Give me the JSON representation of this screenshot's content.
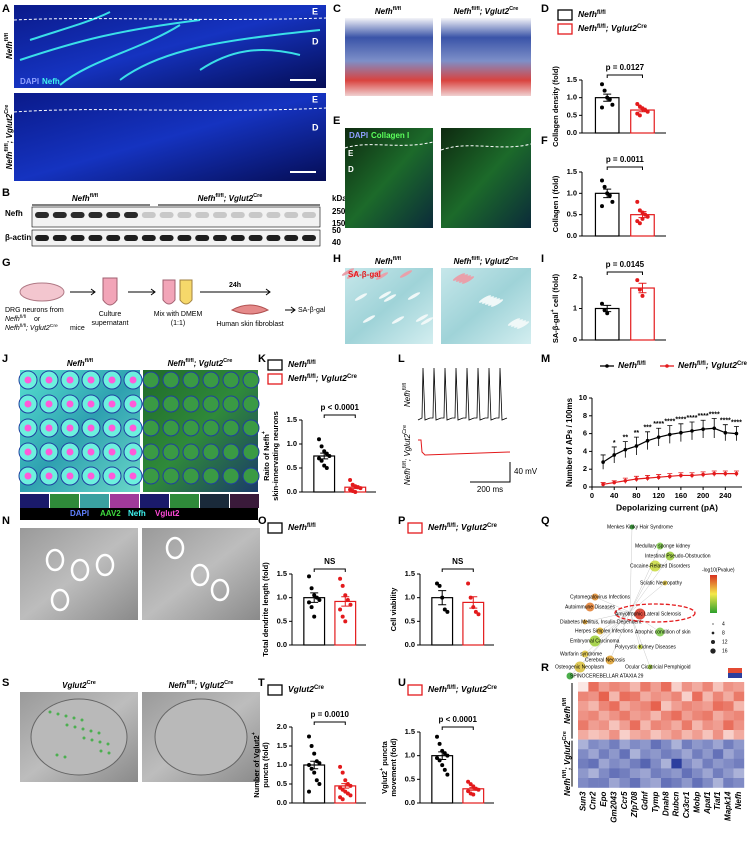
{
  "panel_labels": [
    "A",
    "B",
    "C",
    "D",
    "E",
    "F",
    "G",
    "H",
    "I",
    "J",
    "K",
    "L",
    "M",
    "N",
    "O",
    "P",
    "Q",
    "R",
    "S",
    "T",
    "U"
  ],
  "genotypes": {
    "wt": [
      "Nefh",
      "fl/fl"
    ],
    "ko": [
      "Nefh",
      "fl/fl",
      "; Vglut2",
      "Cre"
    ],
    "cre": [
      "Vglut2",
      "Cre"
    ]
  },
  "channels": {
    "A": [
      "DAPI",
      "Nefh"
    ],
    "E": [
      "DAPI",
      "Collagen I"
    ],
    "J": [
      "DAPI",
      "AAV2",
      "Nefh",
      "Vglut2"
    ],
    "H": [
      "SA-β-gal"
    ]
  },
  "layer_labels": [
    "E",
    "D"
  ],
  "blot": {
    "rows": [
      "Nefh",
      "β-actin"
    ],
    "unit": "kDa",
    "markers": [
      250,
      150,
      50,
      40
    ]
  },
  "schematic": {
    "step1": "DRG neurons from",
    "or": "or",
    "mice": "mice",
    "step2": [
      "Culture",
      "supernatant"
    ],
    "step3": [
      "Mix with DMEM",
      "(1:1)"
    ],
    "time": "24h",
    "step4": "Human skin fibroblast",
    "readout": "SA-β-gal"
  },
  "traces": {
    "voltage": "40 mV",
    "time": "200 ms"
  },
  "network": {
    "nodes": [
      "Menkes Kinky Hair Syndrome",
      "Medullary sponge kidney",
      "Intestinal Pseudo-Obstruction",
      "Cocaine-Related Disorders",
      "Sciatic Neuropathy",
      "Cytomegalovirus Infections",
      "Autoimmune Diseases",
      "Amyotrophic Lateral Sclerosis",
      "Diabetes Mellitus, Insulin-Dependent",
      "Herpes Simplex Infections",
      "Atrophic condition of skin",
      "Embryonal Carcinoma",
      "Polycystic Kidney Diseases",
      "Warfarin syndrome",
      "Cerebral Necrosis",
      "Osteogenic Neoplasm",
      "Ocular Cicatricial Pemphigoid",
      "SPINOCEREBELLAR ATAXIA 29"
    ],
    "legend_title": "-log10(Pvalue)",
    "sizes": [
      4,
      8,
      12,
      16
    ]
  },
  "chart_data": [
    {
      "type": "bar",
      "ylabel": [
        [
          "Collagen density (fold)"
        ]
      ],
      "ylim": [
        0,
        1.5
      ],
      "yticks": [
        {
          "value": 0,
          "label": "0.0"
        },
        {
          "value": 0.5,
          "label": "0.5"
        },
        {
          "value": 1,
          "label": "1.0"
        },
        {
          "value": 1.5,
          "label": "1.5"
        }
      ],
      "stat": "p = 0.0127",
      "series": [
        {
          "name": [
            "Nefh",
            "fl/fl"
          ],
          "color": "#000000",
          "values": [
            1.0
          ],
          "errors": [
            0.1
          ],
          "points": [
            1.38,
            1.2,
            1.0,
            0.95,
            0.8,
            0.72
          ]
        },
        {
          "name": [
            "Nefh",
            "fl/fl",
            "; Vglut2",
            "Cre"
          ],
          "color": "#e31a1c",
          "values": [
            0.65
          ],
          "errors": [
            0.05
          ],
          "points": [
            0.82,
            0.75,
            0.7,
            0.65,
            0.6,
            0.55,
            0.5,
            0.68
          ]
        }
      ]
    },
    {
      "type": "bar",
      "ylabel": [
        [
          "Collagen I (fold)"
        ]
      ],
      "ylim": [
        0,
        1.5
      ],
      "yticks": [
        {
          "value": 0,
          "label": "0.0"
        },
        {
          "value": 0.5,
          "label": "0.5"
        },
        {
          "value": 1,
          "label": "1.0"
        },
        {
          "value": 1.5,
          "label": "1.5"
        }
      ],
      "stat": "p = 0.0011",
      "series": [
        {
          "name": [
            "Nefh",
            "fl/fl"
          ],
          "color": "#000000",
          "values": [
            1.0
          ],
          "errors": [
            0.1
          ],
          "points": [
            1.3,
            1.15,
            1.0,
            0.95,
            0.8,
            0.7
          ]
        },
        {
          "name": [
            "Nefh",
            "fl/fl",
            "; Vglut2",
            "Cre"
          ],
          "color": "#e31a1c",
          "values": [
            0.5
          ],
          "errors": [
            0.07
          ],
          "points": [
            0.8,
            0.6,
            0.55,
            0.5,
            0.45,
            0.35,
            0.3,
            0.4
          ]
        }
      ]
    },
    {
      "type": "bar",
      "ylabel": [
        [
          "SA-β-gal",
          "+",
          " cell (fold)"
        ]
      ],
      "ylim": [
        0,
        2
      ],
      "yticks": [
        0,
        1,
        2
      ],
      "stat": "p = 0.0145",
      "series": [
        {
          "name": [
            "Nefh",
            "fl/fl"
          ],
          "color": "#000000",
          "values": [
            1.0
          ],
          "errors": [
            0.1
          ],
          "points": [
            1.15,
            0.95,
            0.85
          ]
        },
        {
          "name": [
            "Nefh",
            "fl/fl",
            "; Vglut2",
            "Cre"
          ],
          "color": "#e31a1c",
          "values": [
            1.65
          ],
          "errors": [
            0.15
          ],
          "points": [
            1.9,
            1.6,
            1.4
          ]
        }
      ]
    },
    {
      "type": "bar",
      "ylabel": [
        [
          "Raito of Nefh",
          "+"
        ],
        [
          "skin-innervating neurons"
        ]
      ],
      "ylim": [
        0,
        1.5
      ],
      "yticks": [
        {
          "value": 0,
          "label": "0.0"
        },
        {
          "value": 0.5,
          "label": "0.5"
        },
        {
          "value": 1,
          "label": "1.0"
        },
        {
          "value": 1.5,
          "label": "1.5"
        }
      ],
      "stat": "p < 0.0001",
      "series": [
        {
          "name": [
            "Nefh",
            "fl/fl"
          ],
          "color": "#000000",
          "values": [
            0.75
          ],
          "errors": [
            0.06
          ],
          "points": [
            1.1,
            0.95,
            0.85,
            0.8,
            0.75,
            0.7,
            0.65,
            0.55,
            0.5
          ]
        },
        {
          "name": [
            "Nefh",
            "fl/fl",
            "; Vglut2",
            "Cre"
          ],
          "color": "#e31a1c",
          "values": [
            0.1
          ],
          "errors": [
            0.03
          ],
          "points": [
            0.25,
            0.15,
            0.12,
            0.1,
            0.08,
            0.05,
            0.02,
            0.0
          ]
        }
      ]
    },
    {
      "type": "bar",
      "ylabel": [
        [
          "Total dendrite length (fold)"
        ]
      ],
      "ylim": [
        0,
        1.5
      ],
      "yticks": [
        {
          "value": 0,
          "label": "0.0"
        },
        {
          "value": 0.5,
          "label": "0.5"
        },
        {
          "value": 1,
          "label": "1.0"
        },
        {
          "value": 1.5,
          "label": "1.5"
        }
      ],
      "stat": "NS",
      "series": [
        {
          "name": [
            "Nefh",
            "fl/fl"
          ],
          "color": "#000000",
          "values": [
            1.0
          ],
          "errors": [
            0.1
          ],
          "points": [
            1.45,
            1.2,
            1.05,
            1.0,
            0.95,
            0.9,
            0.8,
            0.6
          ]
        },
        {
          "name": [
            "Nefh",
            "fl/fl",
            "; Vglut2",
            "Cre"
          ],
          "color": "#e31a1c",
          "values": [
            0.92
          ],
          "errors": [
            0.1
          ],
          "points": [
            1.4,
            1.25,
            1.05,
            0.95,
            0.85,
            0.75,
            0.6,
            0.5
          ]
        }
      ]
    },
    {
      "type": "bar",
      "ylabel": [
        [
          "Cell viability"
        ]
      ],
      "ylim": [
        0,
        1.5
      ],
      "yticks": [
        {
          "value": 0,
          "label": "0.0"
        },
        {
          "value": 0.5,
          "label": "0.5"
        },
        {
          "value": 1,
          "label": "1.0"
        },
        {
          "value": 1.5,
          "label": "1.5"
        }
      ],
      "stat": "NS",
      "series": [
        {
          "name": [
            "Nefh",
            "fl/fl"
          ],
          "color": "#000000",
          "values": [
            1.0
          ],
          "errors": [
            0.15
          ],
          "points": [
            1.3,
            1.25,
            1.0,
            0.75,
            0.7
          ]
        },
        {
          "name": [
            "Nefh",
            "fl/fl",
            "; Vglut2",
            "Cre"
          ],
          "color": "#e31a1c",
          "values": [
            0.9
          ],
          "errors": [
            0.12
          ],
          "points": [
            1.3,
            1.0,
            0.8,
            0.7,
            0.65
          ]
        }
      ]
    },
    {
      "type": "bar",
      "ylabel": [
        [
          "Number of Vglut2",
          "+"
        ],
        [
          "puncta (fold)"
        ]
      ],
      "ylim": [
        0,
        2
      ],
      "yticks": [
        {
          "value": 0,
          "label": "0.0"
        },
        {
          "value": 0.5,
          "label": "0.5"
        },
        {
          "value": 1,
          "label": "1.0"
        },
        {
          "value": 1.5,
          "label": "1.5"
        },
        {
          "value": 2,
          "label": "2.0"
        }
      ],
      "stat": "p = 0.0010",
      "series": [
        {
          "name": [
            "Vglut2",
            "Cre"
          ],
          "color": "#000000",
          "values": [
            1.0
          ],
          "errors": [
            0.1
          ],
          "points": [
            1.75,
            1.5,
            1.3,
            1.1,
            1.05,
            1.0,
            0.9,
            0.8,
            0.6,
            0.5,
            0.3
          ]
        },
        {
          "name": [
            "Nefh",
            "fl/fl",
            "; Vglut2",
            "Cre"
          ],
          "color": "#e31a1c",
          "values": [
            0.45
          ],
          "errors": [
            0.06
          ],
          "points": [
            0.95,
            0.8,
            0.6,
            0.5,
            0.45,
            0.4,
            0.35,
            0.3,
            0.25,
            0.2,
            0.15,
            0.1
          ]
        }
      ]
    },
    {
      "type": "bar",
      "ylabel": [
        [
          "Vglut2",
          "+",
          " puncta"
        ],
        [
          "movement (fold)"
        ]
      ],
      "ylim": [
        0,
        1.5
      ],
      "yticks": [
        {
          "value": 0,
          "label": "0.0"
        },
        {
          "value": 0.5,
          "label": "0.5"
        },
        {
          "value": 1,
          "label": "1.0"
        },
        {
          "value": 1.5,
          "label": "1.5"
        }
      ],
      "stat": "p < 0.0001",
      "series": [
        {
          "name": [
            "Vglut2",
            "Cre"
          ],
          "color": "#000000",
          "values": [
            1.0
          ],
          "errors": [
            0.08
          ],
          "points": [
            1.4,
            1.25,
            1.1,
            1.05,
            1.0,
            0.95,
            0.9,
            0.8,
            0.7,
            0.6
          ]
        },
        {
          "name": [
            "Nefh",
            "fl/fl",
            "; Vglut2",
            "Cre"
          ],
          "color": "#e31a1c",
          "values": [
            0.3
          ],
          "errors": [
            0.03
          ],
          "points": [
            0.45,
            0.4,
            0.35,
            0.3,
            0.28,
            0.25,
            0.2,
            0.18
          ]
        }
      ]
    },
    {
      "type": "line",
      "xlabel": "Depolarizing current (pA)",
      "ylabel": "Number of APs / 100ms",
      "x": [
        20,
        40,
        60,
        80,
        100,
        120,
        140,
        160,
        180,
        200,
        220,
        240,
        260
      ],
      "xlim": [
        0,
        270
      ],
      "xticks": [
        0,
        40,
        80,
        120,
        160,
        200,
        240
      ],
      "ylim": [
        0,
        10
      ],
      "yticks": [
        0,
        2,
        4,
        6,
        8,
        10
      ],
      "significance": [
        null,
        "*",
        "**",
        "**",
        "***",
        "****",
        "****",
        "****",
        "****",
        "****",
        "****",
        "****",
        "****"
      ],
      "series": [
        {
          "name": [
            "Nefh",
            "fl/fl"
          ],
          "color": "#000000",
          "values": [
            2.8,
            3.6,
            4.2,
            4.6,
            5.2,
            5.6,
            5.9,
            6.1,
            6.3,
            6.5,
            6.6,
            6.1,
            6.0
          ],
          "errors": [
            0.8,
            0.9,
            0.9,
            1.0,
            1.0,
            1.0,
            1.0,
            1.0,
            1.0,
            1.0,
            1.1,
            0.9,
            0.8
          ]
        },
        {
          "name": [
            "Nefh",
            "fl/fl",
            "; Vglut2",
            "Cre"
          ],
          "color": "#e31a1c",
          "values": [
            0.3,
            0.5,
            0.7,
            0.9,
            1.0,
            1.1,
            1.2,
            1.3,
            1.3,
            1.4,
            1.5,
            1.5,
            1.5
          ],
          "errors": [
            0.2,
            0.2,
            0.3,
            0.3,
            0.3,
            0.3,
            0.3,
            0.3,
            0.3,
            0.3,
            0.3,
            0.3,
            0.3
          ]
        }
      ]
    },
    {
      "type": "heatmap",
      "columns": [
        "Sun3",
        "Cnr2",
        "Epo",
        "Gm2043",
        "Ccr5",
        "Zfp708",
        "Gdnf",
        "Tymp",
        "Dnah8",
        "Rubcn",
        "Cx3cr1",
        "Mobp",
        "Apaf1",
        "Tiaf1",
        "Mapk14",
        "Nefh"
      ],
      "series": [
        {
          "name": [
            "Nefh",
            "fl/fl"
          ],
          "values": [
            [
              0.2,
              1.2,
              0.8,
              1.0,
              0.9,
              0.6,
              1.1,
              0.8,
              1.2,
              0.4,
              0.9,
              0.7,
              1.0,
              0.5,
              0.9,
              0.8
            ],
            [
              1.0,
              0.9,
              1.3,
              0.6,
              1.2,
              1.1,
              0.7,
              0.9,
              0.8,
              1.0,
              0.4,
              1.2,
              0.6,
              1.0,
              0.7,
              1.1
            ],
            [
              0.8,
              0.6,
              1.0,
              1.2,
              0.7,
              0.9,
              1.0,
              1.3,
              0.5,
              0.8,
              1.0,
              0.9,
              0.8,
              1.2,
              1.1,
              0.6
            ],
            [
              0.9,
              1.0,
              0.7,
              0.9,
              1.1,
              0.8,
              0.9,
              0.6,
              1.0,
              1.2,
              0.8,
              1.0,
              1.1,
              0.7,
              0.9,
              1.0
            ],
            [
              1.1,
              0.8,
              0.9,
              0.5,
              0.8,
              1.2,
              0.6,
              1.0,
              0.9,
              0.7,
              1.1,
              0.6,
              0.9,
              0.8,
              1.2,
              0.9
            ],
            [
              0.7,
              0.5,
              0.6,
              0.9,
              0.4,
              0.7,
              0.8,
              0.5,
              0.7,
              0.9,
              0.6,
              0.8,
              0.5,
              0.9,
              0.4,
              0.7
            ]
          ]
        },
        {
          "name": [
            "Nefh",
            "fl/fl",
            "; Vglut2",
            "Cre"
          ],
          "values": [
            [
              -0.6,
              -0.9,
              -0.8,
              -1.0,
              -0.7,
              -0.9,
              -0.8,
              -1.1,
              -0.9,
              -0.6,
              -1.0,
              -0.8,
              -0.9,
              -0.7,
              -1.0,
              -0.8
            ],
            [
              -0.9,
              -0.7,
              -1.0,
              -0.8,
              -1.1,
              -0.6,
              -0.9,
              -0.8,
              -1.0,
              -0.9,
              -0.7,
              -1.0,
              -0.8,
              -1.1,
              -0.7,
              -0.9
            ],
            [
              -1.0,
              -1.1,
              -0.7,
              -0.9,
              -0.8,
              -1.0,
              -1.2,
              -0.9,
              -0.6,
              -1.8,
              -0.9,
              -0.7,
              -1.0,
              -0.8,
              -0.9,
              -1.0
            ],
            [
              -0.8,
              -0.6,
              -0.9,
              -1.1,
              -1.0,
              -0.8,
              -0.7,
              -1.0,
              -0.9,
              -0.8,
              -1.1,
              -0.9,
              -0.7,
              -1.0,
              -0.8,
              -0.6
            ],
            [
              -0.9,
              -1.0,
              -1.0,
              -0.7,
              -0.9,
              -1.1,
              -0.8,
              -0.7,
              -1.1,
              -1.0,
              -0.8,
              -1.1,
              -0.9,
              -0.6,
              -1.0,
              -0.9
            ]
          ]
        }
      ]
    }
  ]
}
